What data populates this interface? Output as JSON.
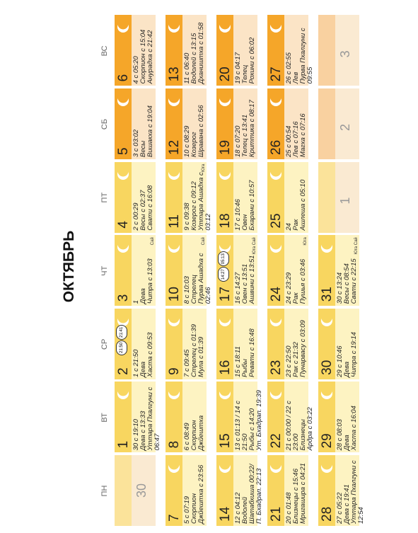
{
  "title": "ОКТЯБРЬ",
  "weekdays": [
    "ПН",
    "ВТ",
    "СР",
    "ЧТ",
    "ПТ",
    "СБ",
    "ВС"
  ],
  "weeks": [
    [
      {
        "day": "30",
        "other": true
      },
      {
        "day": "1",
        "lines": [
          "30 с 19:10",
          "Дева с 13:33",
          "Уттара Пхалгуни с 06:47"
        ]
      },
      {
        "day": "2",
        "lines": [
          "1 с 21:50",
          "Дева",
          "Хаста с 09:53"
        ],
        "badges": [
          "21:50",
          "21:41"
        ]
      },
      {
        "day": "3",
        "lines": [
          "1",
          "Дева",
          "Читра с 13:03"
        ],
        "note": "Сай"
      },
      {
        "day": "4",
        "lines": [
          "2 с 00:29",
          "Весы с 02:37",
          "Свати с 16:08"
        ]
      },
      {
        "day": "5",
        "lines": [
          "3 с 03:02",
          "Весы",
          "Вишакха с 19:04"
        ]
      },
      {
        "day": "6",
        "lines": [
          "4 с 05:20",
          "Скорпион с 15:04",
          "Анурадха с 21:42"
        ]
      }
    ],
    [
      {
        "day": "7",
        "lines": [
          "5 с 07:19",
          "Скорпион",
          "Джйештха с 23:56"
        ]
      },
      {
        "day": "8",
        "lines": [
          "6 с 08:49",
          "Скорпион",
          "Джйештха"
        ]
      },
      {
        "day": "9",
        "lines": [
          "7 с 09:45",
          "Стрелец с 01:39",
          "Мула с 01:39"
        ]
      },
      {
        "day": "10",
        "lines": [
          "8 с 10:03",
          "Стрелец",
          "Пурва Ашадха с 02:46"
        ],
        "note": "Сай"
      },
      {
        "day": "11",
        "lines": [
          "9 с 09:38",
          "Козерог с 09:12",
          "Уттара Ашадха с 03:12"
        ],
        "note": "Юга"
      },
      {
        "day": "12",
        "lines": [
          "10 с 08:29",
          "Козерог",
          "Шравана с 02:56"
        ]
      },
      {
        "day": "13",
        "lines": [
          "11 с 06:40",
          "Водолей с 13:15",
          "Дхаништха с 01:58"
        ]
      }
    ],
    [
      {
        "day": "14",
        "lines": [
          "12 с 04:12",
          "Водолей",
          "Шатабхиша 00:22/",
          "П. Бхадрап. 22:13"
        ]
      },
      {
        "day": "15",
        "lines": [
          "13 с 01:13 / 14 с 21:50",
          "Рыбы с 14:20",
          "Ут. Бхадрап. 19:39"
        ]
      },
      {
        "day": "16",
        "lines": [
          "15 с 18:11",
          "Рыбы",
          "Ревати с 16:48"
        ]
      },
      {
        "day": "17",
        "lines": [
          "16 с 14:27",
          "Овен с 13:51",
          "Ашвини с 13:51"
        ],
        "badges": [
          "14:27",
          "05:13"
        ],
        "note": "Юга Сай"
      },
      {
        "day": "18",
        "lines": [
          "17 с 10:46",
          "Овен",
          "Бхарани с 10:57"
        ]
      },
      {
        "day": "19",
        "lines": [
          "18 с 07:20",
          "Телец с 13:41",
          "Криттика с 08:17"
        ]
      },
      {
        "day": "20",
        "lines": [
          "19 с 04:17",
          "Телец",
          "Рохини с 06:02"
        ]
      }
    ],
    [
      {
        "day": "21",
        "lines": [
          "20 с 01:48",
          "Близнецы с 15:46",
          "Мригашира с 04:21"
        ]
      },
      {
        "day": "22",
        "lines": [
          "21 с 00:00 / 22 с 23:00",
          "Близнецы",
          "Ардра с 03:22"
        ]
      },
      {
        "day": "23",
        "lines": [
          "23 с 22:50",
          "Рак с 21:32",
          "Пунарвасу с 03:09"
        ]
      },
      {
        "day": "24",
        "lines": [
          "24 с 23:29",
          "Рак",
          "Пушья с 03:46"
        ],
        "note": "Юга"
      },
      {
        "day": "25",
        "lines": [
          "24",
          "Рак",
          "Ашлеша с 05:10"
        ]
      },
      {
        "day": "26",
        "lines": [
          "25 с 00:54",
          "Лев с 07:16",
          "Магха с 07:16"
        ]
      },
      {
        "day": "27",
        "lines": [
          "26 с 02:55",
          "Лев",
          "Пурва Пхалгуни с 09:55"
        ]
      }
    ],
    [
      {
        "day": "28",
        "lines": [
          "27 с 05:22",
          "Дева с 19:41",
          "Уттара Пхалгуни с 12:54"
        ]
      },
      {
        "day": "29",
        "lines": [
          "28 с 08:03",
          "Дева",
          "Хаста с 16:04"
        ]
      },
      {
        "day": "30",
        "lines": [
          "29 с 10:46",
          "Дева",
          "Читра с 19:14"
        ]
      },
      {
        "day": "31",
        "lines": [
          "30 с 13:24",
          "Весы с 08:54",
          "Свати с 22:15"
        ],
        "note": "Юга Сай"
      },
      {
        "day": "1",
        "other": true
      },
      {
        "day": "2",
        "other": true
      },
      {
        "day": "3",
        "other": true
      }
    ]
  ]
}
